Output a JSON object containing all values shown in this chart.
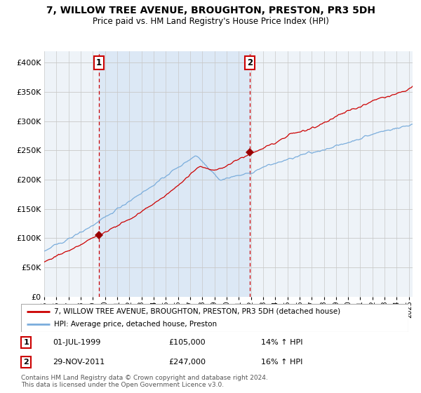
{
  "title": "7, WILLOW TREE AVENUE, BROUGHTON, PRESTON, PR3 5DH",
  "subtitle": "Price paid vs. HM Land Registry's House Price Index (HPI)",
  "legend_line1": "7, WILLOW TREE AVENUE, BROUGHTON, PRESTON, PR3 5DH (detached house)",
  "legend_line2": "HPI: Average price, detached house, Preston",
  "annotation1": {
    "label": "1",
    "date_str": "01-JUL-1999",
    "price": 105000,
    "pct": "14%",
    "dir": "↑"
  },
  "annotation2": {
    "label": "2",
    "date_str": "29-NOV-2011",
    "price": 247000,
    "pct": "16%",
    "dir": "↑"
  },
  "footnote": "Contains HM Land Registry data © Crown copyright and database right 2024.\nThis data is licensed under the Open Government Licence v3.0.",
  "hpi_color": "#7aaddc",
  "price_color": "#cc0000",
  "marker_color": "#990000",
  "vline_color": "#cc0000",
  "shade_color": "#dce8f5",
  "grid_color": "#c8c8c8",
  "plot_bg": "#eef3f8",
  "ylim": [
    0,
    420000
  ],
  "yticks": [
    0,
    50000,
    100000,
    150000,
    200000,
    250000,
    300000,
    350000,
    400000
  ],
  "start_year": 1995.0,
  "end_year": 2025.3,
  "sale1_year": 1999.5,
  "sale2_year": 2011.92
}
